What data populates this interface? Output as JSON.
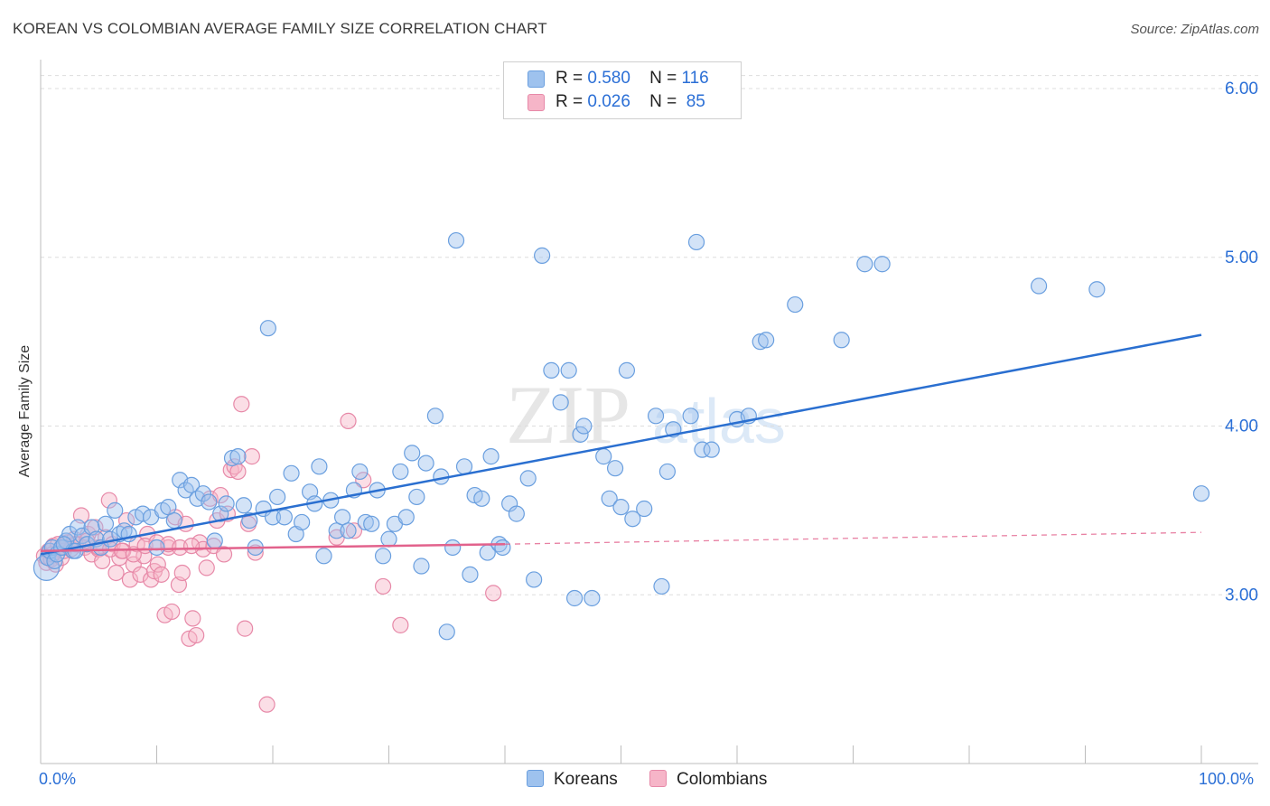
{
  "title": "KOREAN VS COLOMBIAN AVERAGE FAMILY SIZE CORRELATION CHART",
  "source": "Source: ZipAtlas.com",
  "colors": {
    "korean_fill": "#9ec2ee",
    "korean_stroke": "#6a9fdf",
    "korean_line": "#2a6fd0",
    "colombian_fill": "#f6b5c8",
    "colombian_stroke": "#e789a8",
    "colombian_line": "#e2628c",
    "accent_text": "#2b6fd6",
    "grid": "#dddddd"
  },
  "legend": {
    "rows": [
      {
        "r_label": "R =",
        "r_value": "0.580",
        "n_label": "N =",
        "n_value": "116"
      },
      {
        "r_label": "R =",
        "r_value": "0.026",
        "n_label": "N =",
        "n_value": "85"
      }
    ]
  },
  "chart_data": {
    "type": "scatter",
    "title": "KOREAN VS COLOMBIAN AVERAGE FAMILY SIZE CORRELATION CHART",
    "xlabel": "",
    "ylabel": "Average Family Size",
    "xlim": [
      0,
      100
    ],
    "ylim": [
      2.0,
      6.15
    ],
    "x_tick_labels": [
      "0.0%",
      "100.0%"
    ],
    "y_ticks": [
      3.0,
      4.0,
      5.0,
      6.0
    ],
    "y_tick_labels": [
      "3.00",
      "4.00",
      "5.00",
      "6.00"
    ],
    "grid": "horizontal dashed",
    "legend_position": "top-center",
    "series": [
      {
        "name": "Koreans",
        "r": 0.58,
        "n": 116,
        "trend": {
          "x": [
            0,
            100
          ],
          "y": [
            3.24,
            4.54
          ]
        },
        "points": [
          [
            0.5,
            3.16
          ],
          [
            0.6,
            3.22
          ],
          [
            0.8,
            3.26
          ],
          [
            1.0,
            3.28
          ],
          [
            1.2,
            3.2
          ],
          [
            1.4,
            3.24
          ],
          [
            1.8,
            3.28
          ],
          [
            2.2,
            3.32
          ],
          [
            2.5,
            3.36
          ],
          [
            2.8,
            3.26
          ],
          [
            3.2,
            3.4
          ],
          [
            3.6,
            3.35
          ],
          [
            4.0,
            3.3
          ],
          [
            4.4,
            3.4
          ],
          [
            4.8,
            3.33
          ],
          [
            5.2,
            3.28
          ],
          [
            5.6,
            3.42
          ],
          [
            6.0,
            3.33
          ],
          [
            6.4,
            3.5
          ],
          [
            6.8,
            3.36
          ],
          [
            7.2,
            3.38
          ],
          [
            7.6,
            3.36
          ],
          [
            8.2,
            3.46
          ],
          [
            8.8,
            3.48
          ],
          [
            9.5,
            3.46
          ],
          [
            10.0,
            3.28
          ],
          [
            10.5,
            3.5
          ],
          [
            11.0,
            3.52
          ],
          [
            11.5,
            3.44
          ],
          [
            12.0,
            3.68
          ],
          [
            12.5,
            3.62
          ],
          [
            13.0,
            3.65
          ],
          [
            13.5,
            3.57
          ],
          [
            14.0,
            3.6
          ],
          [
            14.5,
            3.55
          ],
          [
            15.0,
            3.32
          ],
          [
            15.5,
            3.48
          ],
          [
            16.0,
            3.54
          ],
          [
            16.5,
            3.81
          ],
          [
            17.0,
            3.82
          ],
          [
            17.5,
            3.53
          ],
          [
            18.0,
            3.44
          ],
          [
            18.5,
            3.28
          ],
          [
            19.2,
            3.51
          ],
          [
            19.6,
            4.58
          ],
          [
            20.0,
            3.46
          ],
          [
            20.4,
            3.58
          ],
          [
            21.0,
            3.46
          ],
          [
            21.6,
            3.72
          ],
          [
            22.0,
            3.36
          ],
          [
            22.5,
            3.43
          ],
          [
            23.2,
            3.61
          ],
          [
            23.6,
            3.54
          ],
          [
            24.0,
            3.76
          ],
          [
            24.4,
            3.23
          ],
          [
            25.0,
            3.56
          ],
          [
            25.5,
            3.38
          ],
          [
            26.0,
            3.46
          ],
          [
            26.5,
            3.38
          ],
          [
            27.0,
            3.62
          ],
          [
            27.5,
            3.73
          ],
          [
            28.0,
            3.43
          ],
          [
            28.5,
            3.42
          ],
          [
            29.0,
            3.62
          ],
          [
            29.5,
            3.23
          ],
          [
            30.0,
            3.33
          ],
          [
            30.5,
            3.42
          ],
          [
            31.0,
            3.73
          ],
          [
            31.5,
            3.46
          ],
          [
            32.0,
            3.84
          ],
          [
            32.4,
            3.58
          ],
          [
            32.8,
            3.17
          ],
          [
            33.2,
            3.78
          ],
          [
            34.0,
            4.06
          ],
          [
            34.5,
            3.7
          ],
          [
            35.0,
            2.78
          ],
          [
            35.5,
            3.28
          ],
          [
            35.8,
            5.1
          ],
          [
            36.5,
            3.76
          ],
          [
            37.0,
            3.12
          ],
          [
            37.4,
            3.59
          ],
          [
            38.0,
            3.57
          ],
          [
            38.5,
            3.25
          ],
          [
            38.8,
            3.82
          ],
          [
            39.5,
            3.3
          ],
          [
            39.8,
            3.28
          ],
          [
            40.4,
            3.54
          ],
          [
            41.0,
            3.48
          ],
          [
            42.0,
            3.69
          ],
          [
            42.5,
            3.09
          ],
          [
            43.2,
            5.01
          ],
          [
            44.0,
            4.33
          ],
          [
            44.8,
            4.14
          ],
          [
            45.5,
            4.33
          ],
          [
            46.0,
            2.98
          ],
          [
            46.5,
            3.95
          ],
          [
            46.8,
            4.0
          ],
          [
            47.5,
            2.98
          ],
          [
            48.5,
            3.82
          ],
          [
            49.0,
            3.57
          ],
          [
            49.5,
            3.75
          ],
          [
            50.0,
            3.52
          ],
          [
            50.5,
            4.33
          ],
          [
            51.0,
            3.45
          ],
          [
            52.0,
            3.51
          ],
          [
            53.0,
            4.06
          ],
          [
            53.5,
            3.05
          ],
          [
            54.0,
            3.73
          ],
          [
            54.5,
            3.98
          ],
          [
            56.0,
            4.06
          ],
          [
            56.5,
            5.09
          ],
          [
            57.0,
            3.86
          ],
          [
            57.8,
            3.86
          ],
          [
            60.0,
            4.04
          ],
          [
            61.0,
            4.06
          ],
          [
            62.0,
            4.5
          ],
          [
            62.5,
            4.51
          ],
          [
            65.0,
            4.72
          ],
          [
            69.0,
            4.51
          ],
          [
            71.0,
            4.96
          ],
          [
            72.5,
            4.96
          ],
          [
            86.0,
            4.83
          ],
          [
            91.0,
            4.81
          ],
          [
            100.0,
            3.6
          ],
          [
            2.0,
            3.3
          ],
          [
            3.0,
            3.26
          ]
        ]
      },
      {
        "name": "Colombians",
        "r": 0.026,
        "n": 85,
        "trend": {
          "x": [
            0,
            40
          ],
          "y": [
            3.26,
            3.3
          ]
        },
        "trend_ext": {
          "x": [
            40,
            100
          ],
          "y": [
            3.3,
            3.37
          ]
        },
        "points": [
          [
            0.3,
            3.23
          ],
          [
            0.5,
            3.19
          ],
          [
            0.7,
            3.26
          ],
          [
            0.9,
            3.21
          ],
          [
            1.1,
            3.29
          ],
          [
            1.3,
            3.18
          ],
          [
            1.5,
            3.3
          ],
          [
            1.8,
            3.22
          ],
          [
            2.0,
            3.26
          ],
          [
            2.3,
            3.31
          ],
          [
            2.6,
            3.27
          ],
          [
            2.9,
            3.33
          ],
          [
            3.2,
            3.3
          ],
          [
            3.5,
            3.47
          ],
          [
            3.8,
            3.28
          ],
          [
            4.1,
            3.36
          ],
          [
            4.4,
            3.24
          ],
          [
            4.7,
            3.4
          ],
          [
            5.0,
            3.27
          ],
          [
            5.3,
            3.2
          ],
          [
            5.6,
            3.34
          ],
          [
            5.9,
            3.56
          ],
          [
            6.2,
            3.3
          ],
          [
            6.5,
            3.13
          ],
          [
            6.8,
            3.22
          ],
          [
            7.1,
            3.26
          ],
          [
            7.4,
            3.44
          ],
          [
            7.7,
            3.09
          ],
          [
            8.0,
            3.18
          ],
          [
            8.3,
            3.3
          ],
          [
            8.6,
            3.12
          ],
          [
            8.9,
            3.23
          ],
          [
            9.2,
            3.36
          ],
          [
            9.5,
            3.09
          ],
          [
            9.8,
            3.14
          ],
          [
            10.1,
            3.18
          ],
          [
            10.4,
            3.12
          ],
          [
            10.7,
            2.88
          ],
          [
            11.0,
            3.28
          ],
          [
            11.3,
            2.9
          ],
          [
            11.6,
            3.46
          ],
          [
            11.9,
            3.06
          ],
          [
            12.2,
            3.13
          ],
          [
            12.5,
            3.42
          ],
          [
            12.8,
            2.74
          ],
          [
            13.1,
            2.86
          ],
          [
            13.4,
            2.76
          ],
          [
            13.7,
            3.31
          ],
          [
            14.0,
            3.27
          ],
          [
            14.3,
            3.16
          ],
          [
            14.6,
            3.57
          ],
          [
            14.9,
            3.29
          ],
          [
            15.2,
            3.44
          ],
          [
            15.5,
            3.59
          ],
          [
            15.8,
            3.24
          ],
          [
            16.1,
            3.48
          ],
          [
            16.4,
            3.74
          ],
          [
            16.7,
            3.76
          ],
          [
            17.0,
            3.73
          ],
          [
            17.3,
            4.13
          ],
          [
            17.6,
            2.8
          ],
          [
            17.9,
            3.42
          ],
          [
            18.2,
            3.82
          ],
          [
            18.5,
            3.25
          ],
          [
            19.5,
            2.35
          ],
          [
            25.5,
            3.34
          ],
          [
            26.5,
            4.03
          ],
          [
            27.0,
            3.38
          ],
          [
            27.8,
            3.68
          ],
          [
            29.5,
            3.05
          ],
          [
            31.0,
            2.82
          ],
          [
            39.0,
            3.01
          ],
          [
            1.0,
            3.24
          ],
          [
            2.0,
            3.28
          ],
          [
            3.0,
            3.3
          ],
          [
            4.0,
            3.32
          ],
          [
            5.0,
            3.28
          ],
          [
            6.0,
            3.27
          ],
          [
            7.0,
            3.26
          ],
          [
            8.0,
            3.24
          ],
          [
            9.0,
            3.29
          ],
          [
            10.0,
            3.31
          ],
          [
            11.0,
            3.3
          ],
          [
            12.0,
            3.28
          ],
          [
            13.0,
            3.29
          ]
        ]
      }
    ]
  },
  "bottom_legend": [
    {
      "label": "Koreans"
    },
    {
      "label": "Colombians"
    }
  ],
  "watermark": {
    "zip": "ZIP",
    "atlas": "atlas"
  }
}
